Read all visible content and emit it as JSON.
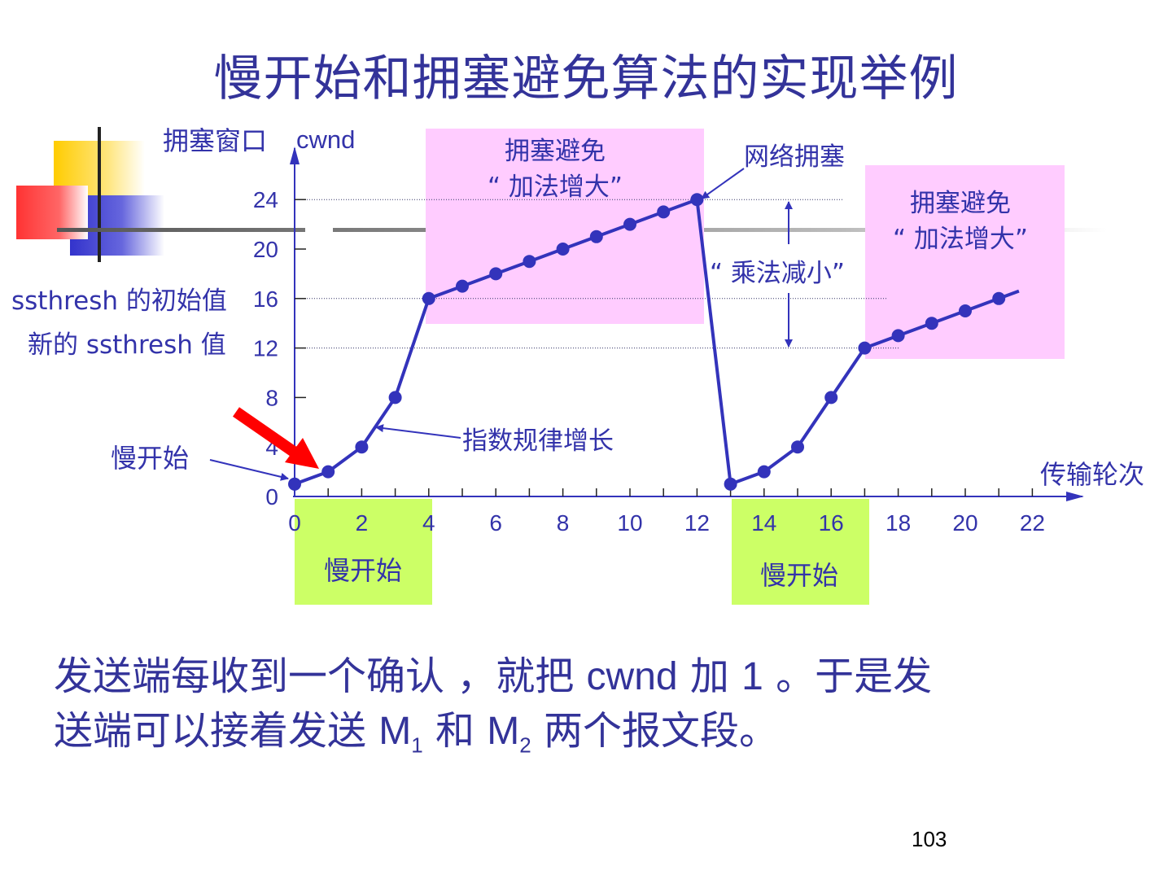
{
  "title": "慢开始和拥塞避免算法的实现举例",
  "chart_data": {
    "type": "line",
    "ylabel": "拥塞窗口",
    "ylabel_en": "cwnd",
    "xlabel": "传输轮次",
    "xlim": [
      0,
      23
    ],
    "ylim": [
      0,
      24
    ],
    "x_ticks": [
      0,
      2,
      4,
      6,
      8,
      10,
      12,
      14,
      16,
      18,
      20,
      22
    ],
    "y_ticks": [
      0,
      4,
      8,
      12,
      16,
      20,
      24
    ],
    "series": [
      {
        "x": [
          0,
          1,
          2,
          3,
          4,
          5,
          6,
          7,
          8,
          9,
          10,
          11,
          12,
          13,
          14,
          15,
          16,
          17,
          18,
          19,
          20,
          21
        ],
        "y": [
          1,
          2,
          4,
          8,
          16,
          17,
          18,
          19,
          20,
          21,
          22,
          23,
          24,
          1,
          2,
          4,
          8,
          12,
          13,
          14,
          15,
          16
        ]
      }
    ],
    "annotations": {
      "ssthresh_initial": "ssthresh 的初始值",
      "ssthresh_new": "新的 ssthresh 值",
      "slow_start_left": "慢开始",
      "exponential": "指数规律增长",
      "congestion": "网络拥塞",
      "multiplicative": "“ 乘法减小”",
      "ca_box_1_line1": "拥塞避免",
      "ca_box_1_line2": "“ 加法增大”",
      "ca_box_2_line1": "拥塞避免",
      "ca_box_2_line2": "“ 加法增大”",
      "ss_box_1": "慢开始",
      "ss_box_2": "慢开始"
    },
    "colors": {
      "line": "#3333bb",
      "ca_box": "#ffccff",
      "ss_box": "#ccff66",
      "arrow": "#ff0000"
    }
  },
  "body": {
    "line1_a": "发送端每收到一个确认 ，就把 ",
    "line1_cwnd": "cwnd",
    "line1_b": " 加 ",
    "line1_one": "1",
    "line1_c": " 。于是发",
    "line2_a": "送端可以接着发送 ",
    "m": "M",
    "sub1": "1",
    "line2_b": " 和 ",
    "sub2": "2",
    "line2_c": " 两个报文段。"
  },
  "page_number": "103"
}
